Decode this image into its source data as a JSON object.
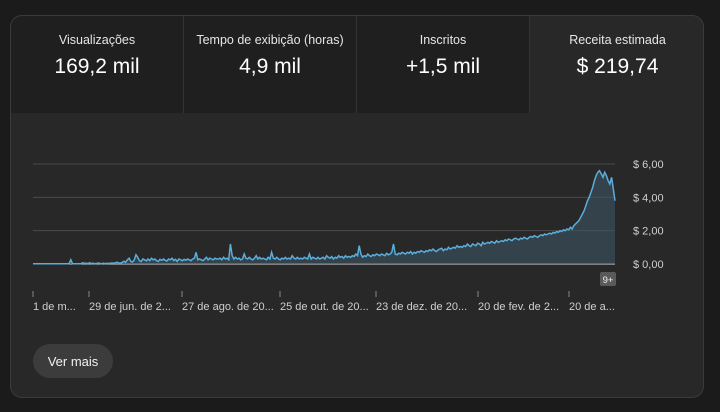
{
  "tabs": [
    {
      "label": "Visualizações",
      "value": "169,2 mil"
    },
    {
      "label": "Tempo de exibição (horas)",
      "value": "4,9 mil"
    },
    {
      "label": "Inscritos",
      "value": "+1,5 mil"
    },
    {
      "label": "Receita estimada",
      "value": "$ 219,74"
    }
  ],
  "badge": "9+",
  "more_button": "Ver mais",
  "colors": {
    "line": "#5aaedc",
    "fill": "#3e5868",
    "grid": "#4a4a4a",
    "baseline": "#d8d8d8"
  },
  "chart_data": {
    "type": "area",
    "series": [
      {
        "values": [
          0.02,
          0.02,
          0.02,
          0.02,
          0.02,
          0.02,
          0.02,
          0.02,
          0.02,
          0.02,
          0.02,
          0.02,
          0.02,
          0.02,
          0.02,
          0.02,
          0.02,
          0.02,
          0.02,
          0.02,
          0.02,
          0.02,
          0.25,
          0.02,
          0.02,
          0.02,
          0.02,
          0.02,
          0.02,
          0.08,
          0.03,
          0.05,
          0.02,
          0.08,
          0.02,
          0.05,
          0.02,
          0.03,
          0.06,
          0.03,
          0.02,
          0.05,
          0.02,
          0.04,
          0.03,
          0.05,
          0.06,
          0.04,
          0.08,
          0.1,
          0.06,
          0.05,
          0.1,
          0.16,
          0.1,
          0.25,
          0.35,
          0.15,
          0.12,
          0.25,
          0.55,
          0.4,
          0.2,
          0.15,
          0.3,
          0.25,
          0.18,
          0.3,
          0.2,
          0.35,
          0.25,
          0.3,
          0.2,
          0.15,
          0.28,
          0.22,
          0.3,
          0.22,
          0.18,
          0.3,
          0.25,
          0.35,
          0.2,
          0.28,
          0.15,
          0.3,
          0.25,
          0.2,
          0.28,
          0.22,
          0.3,
          0.25,
          0.2,
          0.3,
          0.35,
          0.7,
          0.25,
          0.3,
          0.25,
          0.2,
          0.3,
          0.4,
          0.25,
          0.35,
          0.3,
          0.25,
          0.35,
          0.3,
          0.3,
          0.35,
          0.25,
          0.4,
          0.3,
          0.35,
          0.25,
          1.2,
          0.5,
          0.3,
          0.4,
          0.3,
          0.35,
          0.25,
          0.3,
          0.6,
          0.35,
          0.3,
          0.4,
          0.3,
          0.25,
          0.35,
          0.5,
          0.3,
          0.4,
          0.3,
          0.35,
          0.3,
          0.25,
          0.4,
          0.3,
          0.7,
          0.35,
          0.3,
          0.4,
          0.3,
          0.25,
          0.35,
          0.3,
          0.4,
          0.3,
          0.35,
          0.3,
          0.5,
          0.35,
          0.3,
          0.4,
          0.3,
          0.35,
          0.3,
          0.4,
          0.35,
          0.3,
          0.6,
          0.3,
          0.4,
          0.35,
          0.3,
          0.4,
          0.3,
          0.35,
          0.4,
          0.3,
          0.5,
          0.4,
          0.35,
          0.45,
          0.3,
          0.4,
          0.35,
          0.5,
          0.4,
          0.45,
          0.35,
          0.5,
          0.4,
          0.45,
          0.4,
          0.5,
          0.45,
          0.6,
          0.5,
          1.1,
          0.6,
          0.4,
          0.5,
          0.45,
          0.6,
          0.5,
          0.45,
          0.55,
          0.5,
          0.6,
          0.55,
          0.5,
          0.6,
          0.55,
          0.5,
          0.65,
          0.55,
          0.6,
          0.7,
          1.2,
          0.6,
          0.55,
          0.65,
          0.6,
          0.7,
          0.65,
          0.6,
          0.7,
          0.65,
          0.75,
          0.6,
          0.7,
          0.65,
          0.75,
          0.7,
          0.8,
          0.75,
          0.7,
          0.8,
          0.75,
          0.85,
          0.8,
          0.9,
          0.8,
          0.75,
          0.85,
          0.9,
          0.95,
          0.8,
          0.9,
          0.85,
          1.0,
          0.9,
          0.95,
          1.0,
          0.95,
          1.1,
          1.0,
          1.05,
          1.0,
          1.1,
          1.05,
          1.2,
          1.1,
          1.05,
          1.2,
          1.15,
          1.1,
          1.25,
          1.2,
          1.1,
          1.3,
          1.2,
          1.25,
          1.3,
          1.25,
          1.35,
          1.3,
          1.25,
          1.4,
          1.3,
          1.35,
          1.4,
          1.35,
          1.45,
          1.4,
          1.5,
          1.45,
          1.4,
          1.5,
          1.55,
          1.5,
          1.45,
          1.55,
          1.5,
          1.6,
          1.55,
          1.5,
          1.6,
          1.65,
          1.6,
          1.7,
          1.65,
          1.6,
          1.7,
          1.75,
          1.7,
          1.8,
          1.75,
          1.8,
          1.85,
          1.8,
          1.9,
          1.85,
          1.95,
          1.9,
          2.0,
          1.95,
          2.05,
          2.0,
          2.1,
          2.05,
          2.2,
          2.1,
          2.3,
          2.4,
          2.5,
          2.6,
          2.8,
          3.0,
          3.2,
          3.5,
          3.8,
          4.0,
          4.3,
          4.6,
          5.0,
          5.3,
          5.5,
          5.6,
          5.4,
          5.2,
          5.5,
          5.3,
          5.0,
          4.8,
          5.2,
          4.5,
          3.8
        ]
      }
    ],
    "x_ticks": [
      "1 de m...",
      "29 de jun. de 2...",
      "27 de ago. de 20...",
      "25 de out. de 20...",
      "23 de dez. de 20...",
      "20 de fev. de 2...",
      "20 de a..."
    ],
    "y_ticks": [
      "$ 6,00",
      "$ 4,00",
      "$ 2,00",
      "$ 0,00"
    ],
    "ylim": [
      0,
      6
    ]
  }
}
